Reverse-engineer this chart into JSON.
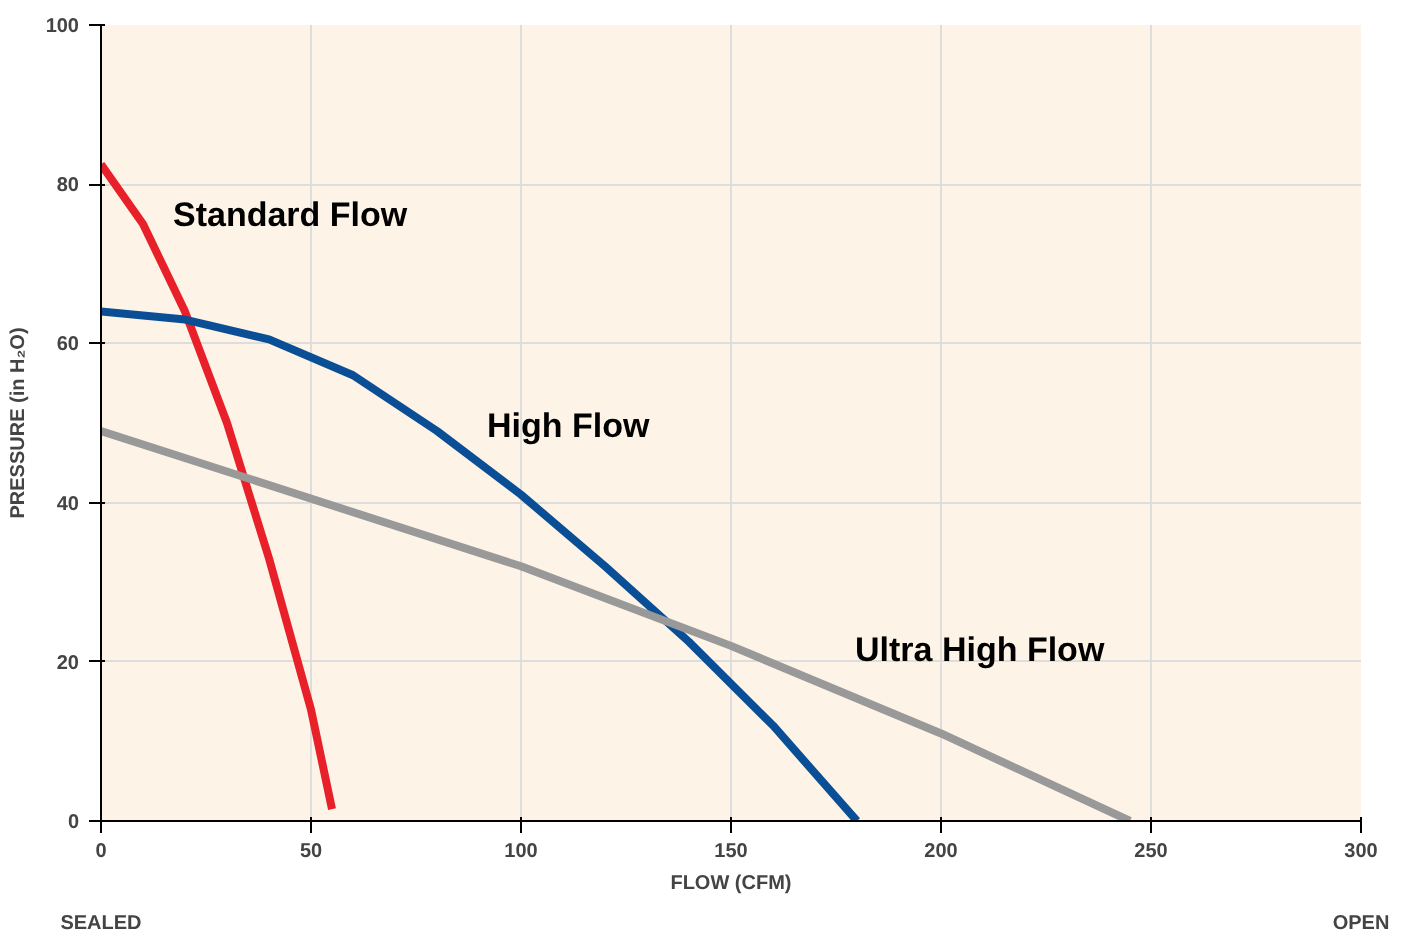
{
  "chart_data": {
    "type": "line",
    "xlabel": "FLOW (CFM)",
    "ylabel": "PRESSURE (in H₂O)",
    "xlim": [
      0,
      300
    ],
    "xticks": [
      0,
      50,
      100,
      150,
      200,
      250,
      300
    ],
    "ylim": [
      0,
      100
    ],
    "yticks": [
      0,
      20,
      40,
      60,
      80,
      100
    ],
    "grid": true,
    "marker": "none",
    "line_style": "solid",
    "annotations": [
      "SEALED",
      "OPEN"
    ],
    "series": [
      {
        "name": "Standard Flow",
        "color": "#e8202a",
        "x": [
          0,
          10,
          20,
          30,
          40,
          50,
          55
        ],
        "values": [
          82.5,
          75,
          64,
          50,
          33,
          14,
          1.5
        ]
      },
      {
        "name": "High Flow",
        "color": "#0a4f96",
        "x": [
          0,
          20,
          40,
          60,
          80,
          100,
          120,
          140,
          160,
          180
        ],
        "values": [
          64,
          63,
          60.5,
          56,
          49,
          41,
          32,
          22.5,
          12,
          0
        ]
      },
      {
        "name": "Ultra High Flow",
        "color": "#999999",
        "x": [
          0,
          100,
          150,
          200,
          245
        ],
        "values": [
          49,
          32,
          22,
          11,
          0
        ]
      }
    ]
  }
}
